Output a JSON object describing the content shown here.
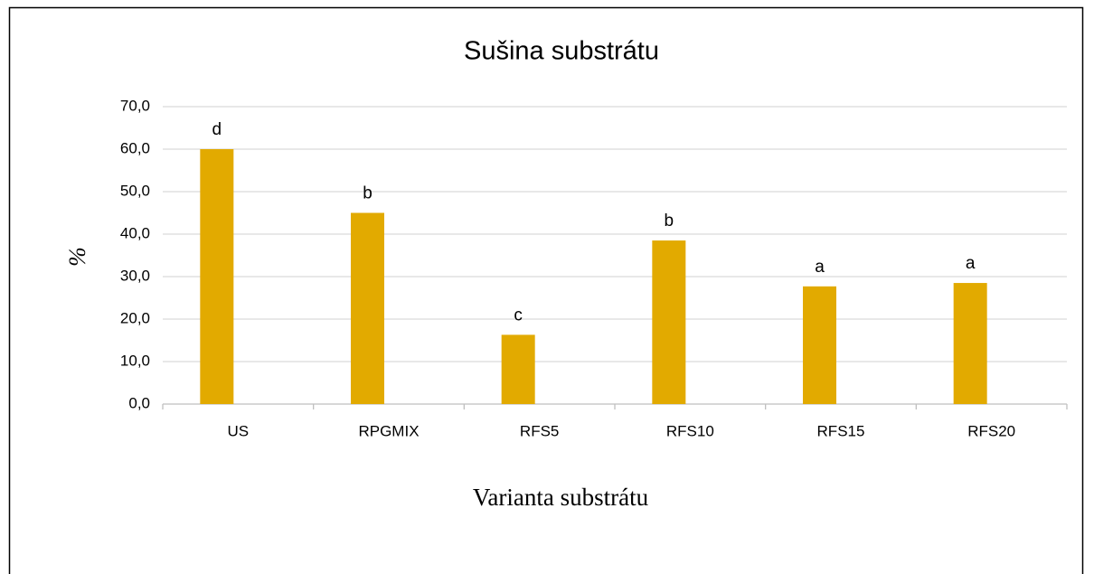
{
  "chart_data": {
    "type": "bar",
    "title": "Sušina substrátu",
    "y_label": "%",
    "x_label": "Varianta substrátu",
    "categories": [
      "US",
      "RPGMIX",
      "RFS5",
      "RFS10",
      "RFS15",
      "RFS20"
    ],
    "values": [
      60.0,
      45.0,
      16.3,
      38.5,
      27.7,
      28.5
    ],
    "annotations": [
      "d",
      "b",
      "c",
      "b",
      "a",
      "a"
    ],
    "color": "#e2aa00",
    "ylim": [
      0,
      70
    ],
    "yticks": [
      {
        "value": 0,
        "label": "0,0"
      },
      {
        "value": 10,
        "label": "10,0"
      },
      {
        "value": 20,
        "label": "20,0"
      },
      {
        "value": 30,
        "label": "30,0"
      },
      {
        "value": 40,
        "label": "40,0"
      },
      {
        "value": 50,
        "label": "50,0"
      },
      {
        "value": 60,
        "label": "60,0"
      },
      {
        "value": 70,
        "label": "70,0"
      }
    ],
    "grid": true
  }
}
